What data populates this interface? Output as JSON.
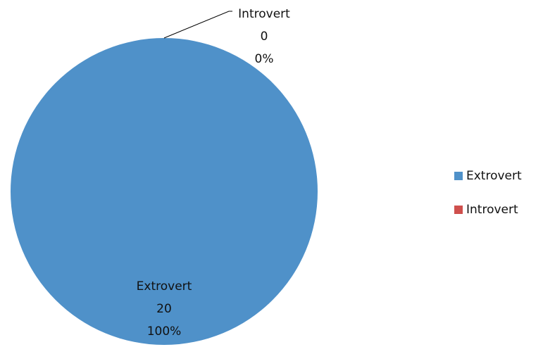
{
  "chart_data": {
    "type": "pie",
    "categories": [
      "Extrovert",
      "Introvert"
    ],
    "values": [
      20,
      0
    ],
    "percent_labels": [
      "100%",
      "0%"
    ],
    "colors": [
      "#4f91c9",
      "#cf504d"
    ],
    "legend": "right"
  }
}
